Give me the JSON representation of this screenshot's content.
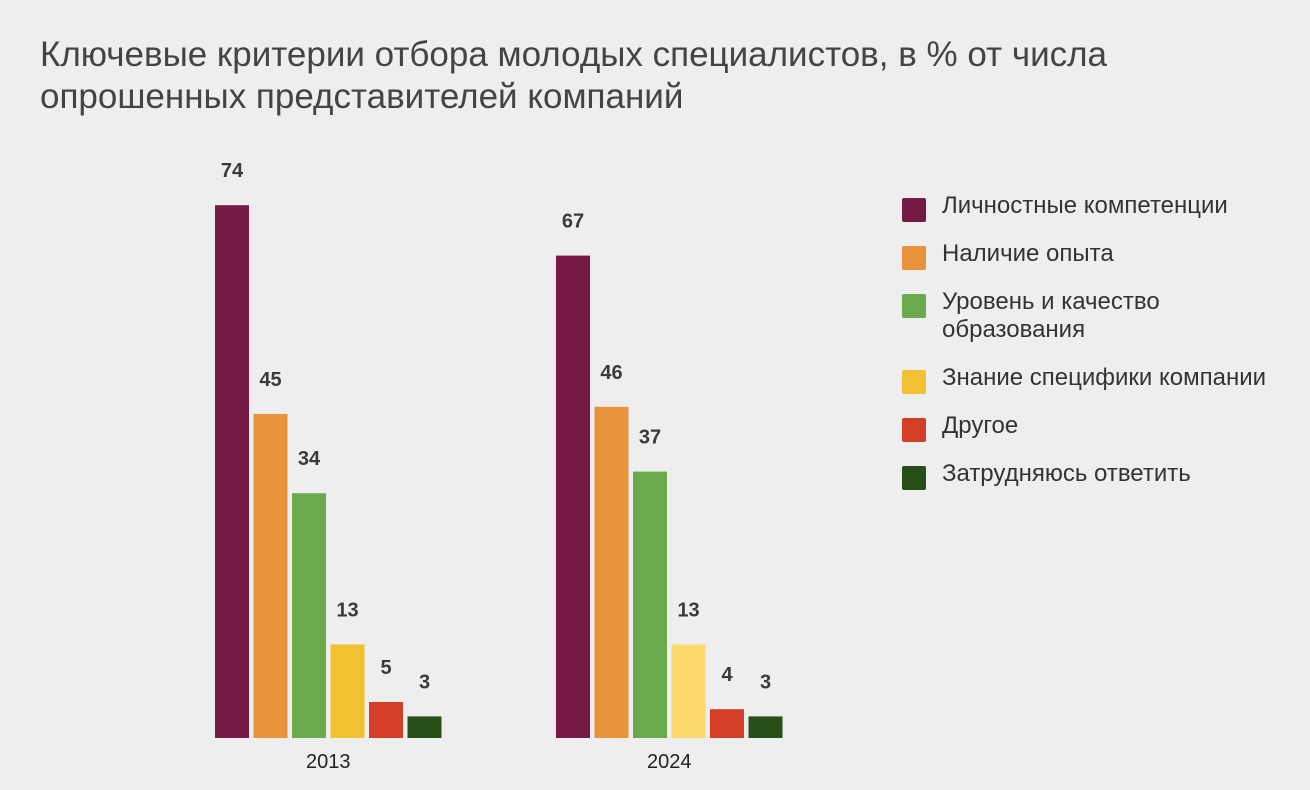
{
  "title": "Ключевые критерии отбора молодых специалистов, в % от числа опрошенных представителей компаний",
  "chart_data": {
    "type": "bar",
    "categories": [
      "2013",
      "2024"
    ],
    "series": [
      {
        "name": "Личностные компетенции",
        "values": [
          74,
          67
        ],
        "colors": [
          "#741a45",
          "#741a45"
        ]
      },
      {
        "name": "Наличие опыта",
        "values": [
          45,
          46
        ],
        "colors": [
          "#e8923a",
          "#e8923a"
        ]
      },
      {
        "name": "Уровень и качество образования",
        "values": [
          34,
          37
        ],
        "colors": [
          "#6aaa4e",
          "#6aaa4e"
        ]
      },
      {
        "name": "Знание специфики компании",
        "values": [
          13,
          13
        ],
        "colors": [
          "#f0c232",
          "#fbd96c"
        ]
      },
      {
        "name": "Другое",
        "values": [
          5,
          4
        ],
        "colors": [
          "#d33f26",
          "#d33f26"
        ]
      },
      {
        "name": "Затрудняюсь ответить",
        "values": [
          3,
          3
        ],
        "colors": [
          "#274f17",
          "#274f17"
        ]
      }
    ],
    "data_labels": true,
    "legend_position": "right",
    "ylim": [
      0,
      80
    ],
    "grid": false
  }
}
